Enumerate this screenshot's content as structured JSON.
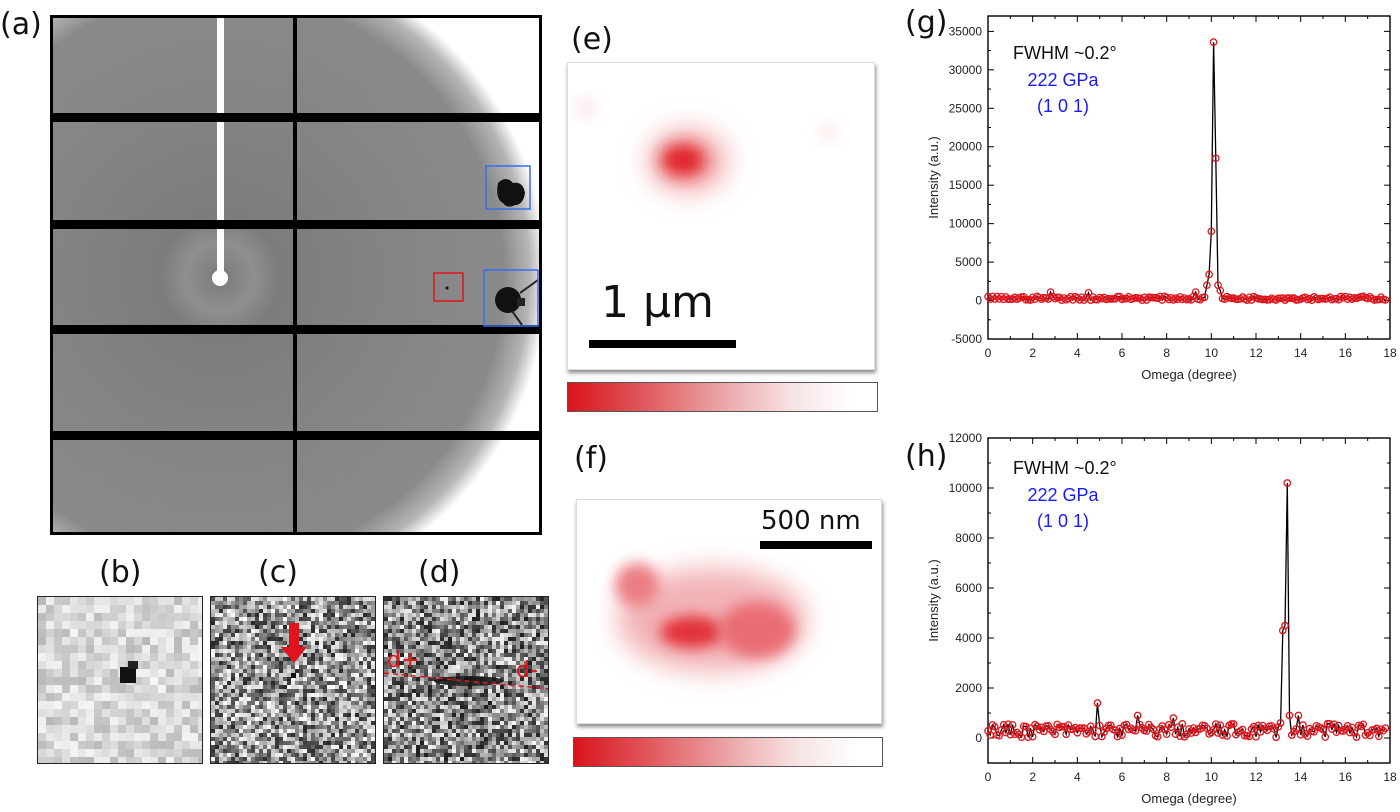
{
  "figure": {
    "panels": {
      "a": {
        "label": "(a)"
      },
      "b": {
        "label": "(b)"
      },
      "c": {
        "label": "(c)"
      },
      "d": {
        "label": "(d)",
        "annotation_left": "d+",
        "annotation_right": "d-"
      },
      "e": {
        "label": "(e)",
        "scale_bar": "1 µm"
      },
      "f": {
        "label": "(f)",
        "scale_bar": "500 nm"
      },
      "g": {
        "label": "(g)"
      },
      "h": {
        "label": "(h)"
      }
    },
    "colors": {
      "marker": "#e0141c",
      "line": "#000000",
      "annotation_blue": "#1a1aff",
      "box_blue": "#3a6cf0",
      "box_red": "#e0141c",
      "map_red": "#d9141c"
    }
  },
  "chart_data": [
    {
      "id": "g",
      "type": "line",
      "title": "",
      "xlabel": "Omega (degree)",
      "ylabel": "Intensity (a.u.)",
      "xlim": [
        0,
        18
      ],
      "ylim": [
        -5000,
        37000
      ],
      "xticks": [
        0,
        2,
        4,
        6,
        8,
        10,
        12,
        14,
        16,
        18
      ],
      "yticks": [
        -5000,
        0,
        5000,
        10000,
        15000,
        20000,
        25000,
        30000,
        35000
      ],
      "annotations": [
        "FWHM  ~0.2°",
        "222 GPa",
        "(1 0 1)"
      ],
      "grid": false,
      "baseline": 300,
      "peaks": [
        {
          "x": 2.8,
          "y": 1100
        },
        {
          "x": 4.5,
          "y": 1000
        },
        {
          "x": 9.3,
          "y": 1100
        },
        {
          "x": 9.8,
          "y": 2000
        },
        {
          "x": 9.9,
          "y": 3400
        },
        {
          "x": 10.0,
          "y": 9000
        },
        {
          "x": 10.1,
          "y": 33600
        },
        {
          "x": 10.2,
          "y": 18500
        },
        {
          "x": 10.3,
          "y": 2000
        },
        {
          "x": 10.4,
          "y": 1300
        }
      ]
    },
    {
      "id": "h",
      "type": "line",
      "title": "",
      "xlabel": "Omega (degree)",
      "ylabel": "Intensity (a.u.)",
      "xlim": [
        0,
        18
      ],
      "ylim": [
        -1000,
        12000
      ],
      "xticks": [
        0,
        2,
        4,
        6,
        8,
        10,
        12,
        14,
        16,
        18
      ],
      "yticks": [
        0,
        2000,
        4000,
        6000,
        8000,
        10000,
        12000
      ],
      "annotations": [
        "FWHM ~0.2°",
        "222 GPa",
        "(1 0 1)"
      ],
      "grid": false,
      "baseline": 300,
      "peaks": [
        {
          "x": 4.9,
          "y": 1400
        },
        {
          "x": 6.7,
          "y": 900
        },
        {
          "x": 8.3,
          "y": 800
        },
        {
          "x": 13.1,
          "y": 600
        },
        {
          "x": 13.2,
          "y": 4300
        },
        {
          "x": 13.3,
          "y": 4500
        },
        {
          "x": 13.4,
          "y": 10200
        },
        {
          "x": 13.5,
          "y": 900
        },
        {
          "x": 13.9,
          "y": 900
        }
      ]
    }
  ]
}
